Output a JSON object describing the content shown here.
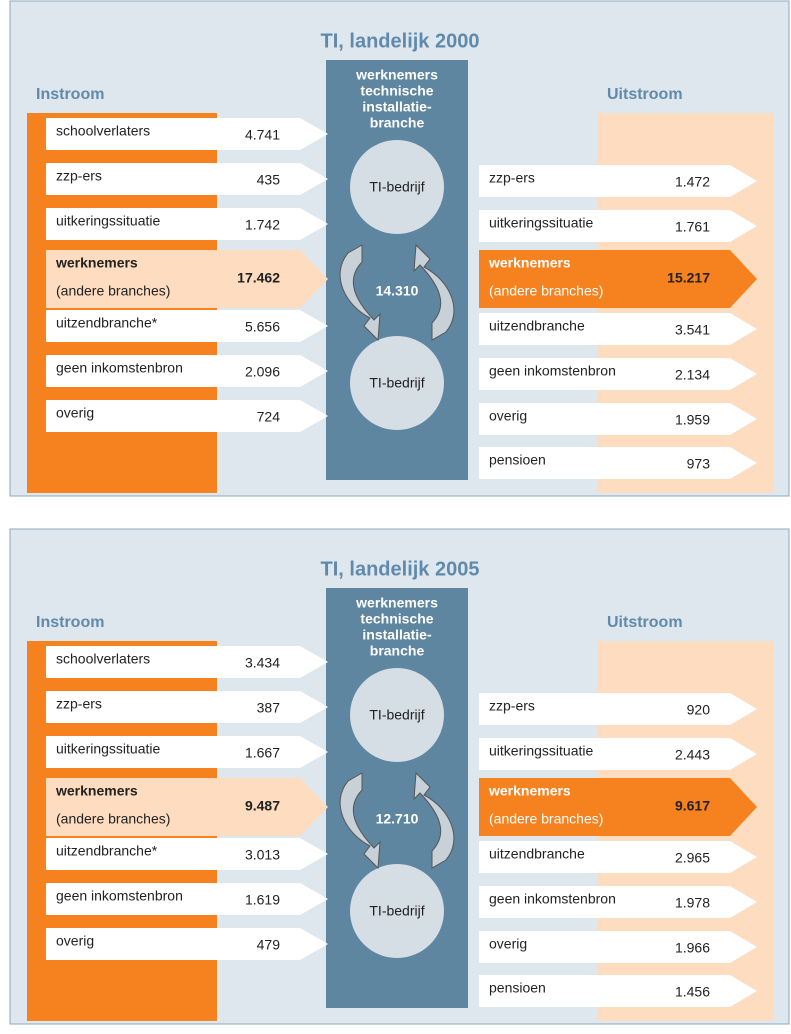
{
  "panels": [
    {
      "title": "TI, landelijk 2000",
      "instroom": "Instroom",
      "uitstroom": "Uitstroom",
      "center": [
        "werknemers",
        "technische",
        "installatie-",
        "branche"
      ],
      "node_top": "TI-bedrijf",
      "node_bottom": "TI-bedrijf",
      "center_value": "14.310",
      "inflows": [
        {
          "label": "schoolverlaters",
          "value": "4.741"
        },
        {
          "label": "zzp-ers",
          "value": "435"
        },
        {
          "label": "uitkeringssituatie",
          "value": "1.742"
        },
        {
          "label": "werknemers",
          "sublabel": "(andere branches)",
          "value": "17.462"
        },
        {
          "label": "uitzendbranche*",
          "value": "5.656"
        },
        {
          "label": "geen inkomstenbron",
          "value": "2.096"
        },
        {
          "label": "overig",
          "value": "724"
        }
      ],
      "outflows": [
        {
          "label": "zzp-ers",
          "value": "1.472"
        },
        {
          "label": "uitkeringssituatie",
          "value": "1.761"
        },
        {
          "label": "werknemers",
          "sublabel": "(andere branches)",
          "value": "15.217"
        },
        {
          "label": "uitzendbranche",
          "value": "3.541"
        },
        {
          "label": "geen inkomstenbron",
          "value": "2.134"
        },
        {
          "label": "overig",
          "value": "1.959"
        },
        {
          "label": "pensioen",
          "value": "973"
        }
      ]
    },
    {
      "title": "TI, landelijk 2005",
      "instroom": "Instroom",
      "uitstroom": "Uitstroom",
      "center": [
        "werknemers",
        "technische",
        "installatie-",
        "branche"
      ],
      "node_top": "TI-bedrijf",
      "node_bottom": "TI-bedrijf",
      "center_value": "12.710",
      "inflows": [
        {
          "label": "schoolverlaters",
          "value": "3.434"
        },
        {
          "label": "zzp-ers",
          "value": "387"
        },
        {
          "label": "uitkeringssituatie",
          "value": "1.667"
        },
        {
          "label": "werknemers",
          "sublabel": "(andere branches)",
          "value": "9.487"
        },
        {
          "label": "uitzendbranche*",
          "value": "3.013"
        },
        {
          "label": "geen inkomstenbron",
          "value": "1.619"
        },
        {
          "label": "overig",
          "value": "479"
        }
      ],
      "outflows": [
        {
          "label": "zzp-ers",
          "value": "920"
        },
        {
          "label": "uitkeringssituatie",
          "value": "2.443"
        },
        {
          "label": "werknemers",
          "sublabel": "(andere branches)",
          "value": "9.617"
        },
        {
          "label": "uitzendbranche",
          "value": "2.965"
        },
        {
          "label": "geen inkomstenbron",
          "value": "1.978"
        },
        {
          "label": "overig",
          "value": "1.966"
        },
        {
          "label": "pensioen",
          "value": "1.456"
        }
      ]
    }
  ]
}
